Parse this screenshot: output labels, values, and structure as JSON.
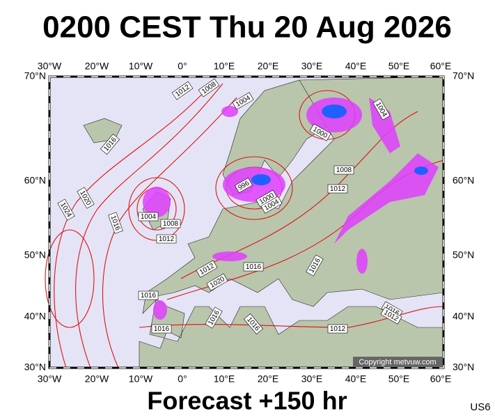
{
  "title": "0200 CEST Thu 20 Aug 2026",
  "footer": "Forecast +150 hr",
  "code": "US6",
  "copyright": "Copyright metvuw.com",
  "lon_labels": [
    "30°W",
    "20°W",
    "10°W",
    "0°",
    "10°E",
    "20°E",
    "30°E",
    "40°E",
    "50°E",
    "60°E"
  ],
  "lat_labels": [
    "70°N",
    "60°N",
    "50°N",
    "40°N",
    "30°N"
  ],
  "isobar_labels": [
    "1012",
    "1008",
    "1004",
    "1016",
    "1020",
    "1024",
    "1016",
    "1004",
    "1008",
    "1012",
    "996",
    "1000",
    "1004",
    "1000",
    "1004",
    "1008",
    "1012",
    "1016",
    "1012",
    "1020",
    "1016",
    "1016",
    "1016",
    "1016",
    "1016",
    "1012",
    "1016",
    "1012"
  ]
}
